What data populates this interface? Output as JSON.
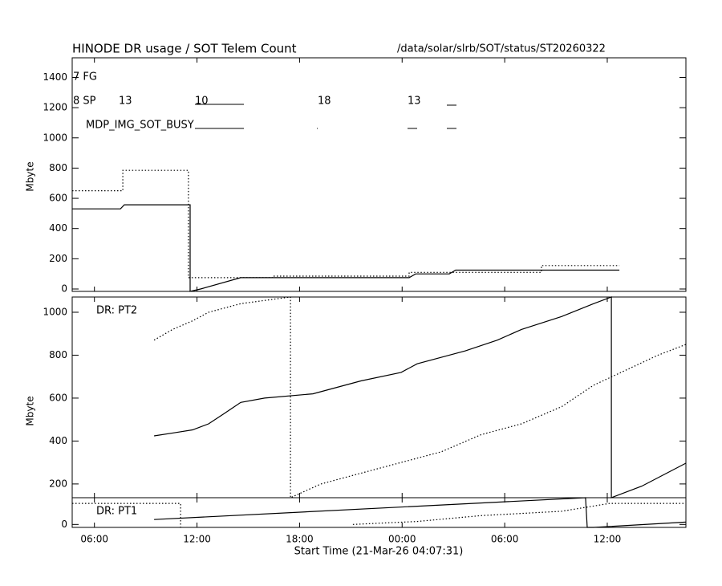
{
  "chart_data": [
    {
      "type": "line",
      "title": "HINODE DR usage / SOT Telem Count",
      "subtitle": "/data/solar/slrb/SOT/status/ST20260322",
      "y_label": "Mbyte",
      "xlim": [
        4.7,
        40.6
      ],
      "ylim": [
        -16,
        1530
      ],
      "yticks": [
        0,
        200,
        400,
        600,
        800,
        1000,
        1200,
        1400
      ],
      "annotations": [
        "7 FG",
        "8 SP",
        "13",
        "10",
        "18",
        "13",
        "MDP_IMG_SOT_BUSY"
      ],
      "series": [
        {
          "color": "#000000",
          "line_style": "solid",
          "x": [
            4.7,
            7.52,
            7.75,
            11.6,
            11.6,
            12.21,
            14.56,
            24.41,
            24.79,
            26.76,
            27.13,
            36.71
          ],
          "values": [
            530,
            530,
            557,
            557,
            -16,
            0,
            75,
            75,
            100,
            100,
            125,
            125
          ]
        },
        {
          "color": "#000000",
          "line_style": "dotted",
          "x": [
            4.7,
            7.66,
            7.66,
            11.5,
            11.5,
            16.43,
            16.43,
            24.41,
            24.41,
            32.15,
            32.15,
            36.71
          ],
          "values": [
            650,
            650,
            785,
            785,
            75,
            75,
            85,
            85,
            110,
            110,
            155,
            155
          ]
        }
      ]
    },
    {
      "type": "line",
      "y_label": "Mbyte",
      "label": "DR: PT2",
      "xlim": [
        4.7,
        40.6
      ],
      "ylim": [
        136,
        1071
      ],
      "yticks": [
        200,
        400,
        600,
        800,
        1000
      ],
      "series": [
        {
          "color": "#000000",
          "line_style": "solid",
          "x": [
            9.49,
            10.8,
            11.74,
            12.68,
            13.62,
            14.56,
            15.96,
            18.78,
            21.59,
            23.94,
            24.88,
            27.7,
            29.57,
            30.98,
            33.33,
            35.2,
            36.24,
            36.24,
            38.02,
            40.6
          ],
          "values": [
            424,
            440,
            452,
            480,
            530,
            580,
            600,
            620,
            680,
            720,
            760,
            820,
            870,
            920,
            980,
            1040,
            1071,
            136,
            190,
            297
          ]
        },
        {
          "color": "#000000",
          "line_style": "dotted",
          "x": [
            9.49,
            10.57,
            11.74,
            12.68,
            14.56,
            16.43,
            17.47,
            17.47,
            19.25,
            21.59,
            23.94,
            26.29,
            28.63,
            30.98,
            33.33,
            35.2,
            37.08,
            38.96,
            40.6
          ],
          "values": [
            870,
            920,
            960,
            1000,
            1040,
            1060,
            1071,
            136,
            200,
            250,
            300,
            350,
            430,
            480,
            560,
            660,
            730,
            800,
            850
          ]
        }
      ]
    },
    {
      "type": "line",
      "label": "DR: PT1",
      "x_label": "Start Time (21-Mar-26 04:07:31)",
      "xlim": [
        4.7,
        40.6
      ],
      "ylim": [
        -15,
        136
      ],
      "yticks": [
        0
      ],
      "xticks": [
        {
          "value": 6,
          "label": "06:00"
        },
        {
          "value": 12,
          "label": "12:00"
        },
        {
          "value": 18,
          "label": "18:00"
        },
        {
          "value": 24,
          "label": "00:00"
        },
        {
          "value": 30,
          "label": "06:00"
        },
        {
          "value": 36,
          "label": "12:00"
        }
      ],
      "series": [
        {
          "color": "#000000",
          "line_style": "solid",
          "x": [
            9.49,
            34.73,
            34.83,
            35.2,
            40.6
          ],
          "values": [
            25,
            136,
            -15,
            -15,
            12
          ]
        },
        {
          "color": "#000000",
          "line_style": "dotted",
          "x": [
            4.7,
            11.04,
            11.04,
            null,
            21.12,
            24.88,
            28.63,
            33.33,
            36.14,
            40.6
          ],
          "values": [
            107,
            107,
            -15,
            null,
            0,
            15,
            45,
            67,
            107,
            107
          ]
        }
      ]
    }
  ]
}
